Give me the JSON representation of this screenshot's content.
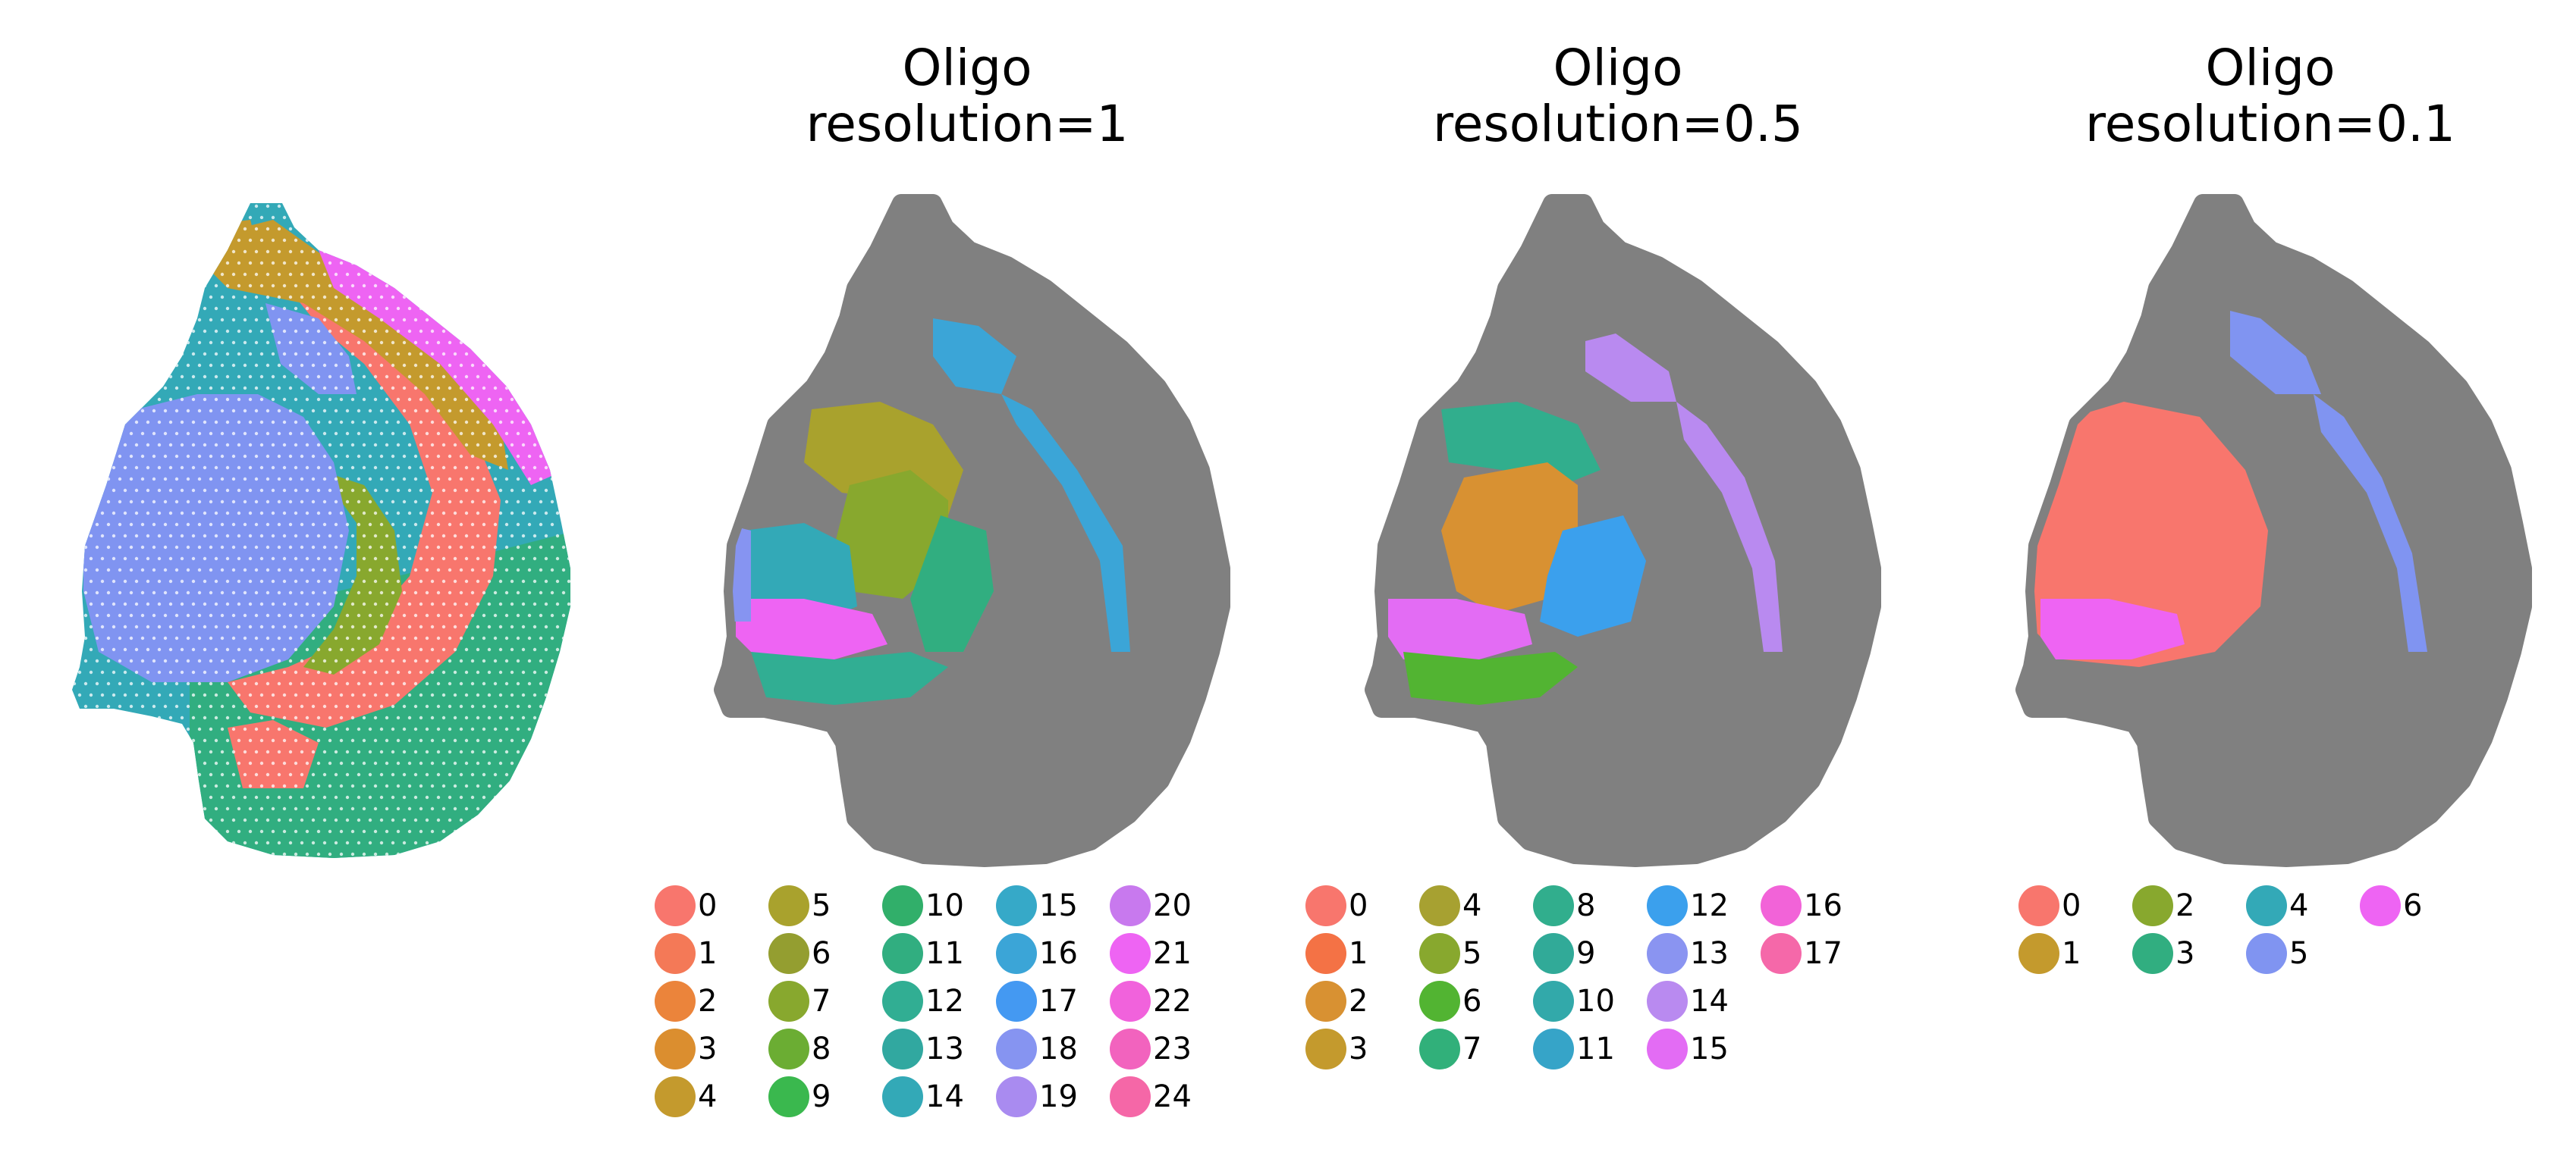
{
  "chart_data": [
    {
      "type": "scatter",
      "title": "",
      "subtitle": "",
      "xlabel": "",
      "ylabel": "",
      "grid": false,
      "legend": "none",
      "color_scheme": "clusters-full-tissue"
    },
    {
      "type": "scatter",
      "title": "Oligo",
      "subtitle": "resolution=1",
      "xlabel": "",
      "ylabel": "",
      "grid": false,
      "legend": "bottom",
      "background_color": "#808080",
      "categories": [
        "0",
        "1",
        "2",
        "3",
        "4",
        "5",
        "6",
        "7",
        "8",
        "9",
        "10",
        "11",
        "12",
        "13",
        "14",
        "15",
        "16",
        "17",
        "18",
        "19",
        "20",
        "21",
        "22",
        "23",
        "24"
      ],
      "colors": [
        "#F8766D",
        "#F47957",
        "#EB843B",
        "#DB8E2F",
        "#C49A2D",
        "#A9A22D",
        "#949E30",
        "#88A82E",
        "#6BAD33",
        "#3AB84E",
        "#31AF6A",
        "#31AE80",
        "#31AE93",
        "#31A8A0",
        "#33A9B7",
        "#36A9C8",
        "#3BA5D7",
        "#4499F2",
        "#8694F1",
        "#A98BF0",
        "#C879EE",
        "#EE64F3",
        "#F162DC",
        "#F263BE",
        "#F567A7"
      ],
      "legend_columns": 5
    },
    {
      "type": "scatter",
      "title": "Oligo",
      "subtitle": "resolution=0.5",
      "xlabel": "",
      "ylabel": "",
      "grid": false,
      "legend": "bottom",
      "background_color": "#808080",
      "categories": [
        "0",
        "1",
        "2",
        "3",
        "4",
        "5",
        "6",
        "7",
        "8",
        "9",
        "10",
        "11",
        "12",
        "13",
        "14",
        "15",
        "16",
        "17"
      ],
      "colors": [
        "#F8766D",
        "#F47245",
        "#D89132",
        "#C49A2D",
        "#A7A131",
        "#88A82E",
        "#52B432",
        "#31B07A",
        "#31AE8D",
        "#31AA98",
        "#32A9AA",
        "#36A4C8",
        "#3BA0ED",
        "#8A94F1",
        "#B98AF0",
        "#E36CF4",
        "#F263D8",
        "#F568A9"
      ],
      "legend_columns": 5
    },
    {
      "type": "scatter",
      "title": "Oligo",
      "subtitle": "resolution=0.1",
      "xlabel": "",
      "ylabel": "",
      "grid": false,
      "legend": "bottom",
      "background_color": "#808080",
      "categories": [
        "0",
        "1",
        "2",
        "3",
        "4",
        "5",
        "6"
      ],
      "colors": [
        "#F8766D",
        "#C49A2D",
        "#88A82E",
        "#31AE80",
        "#33A9B7",
        "#8094F1",
        "#EE64F3"
      ],
      "legend_columns": 5
    }
  ]
}
